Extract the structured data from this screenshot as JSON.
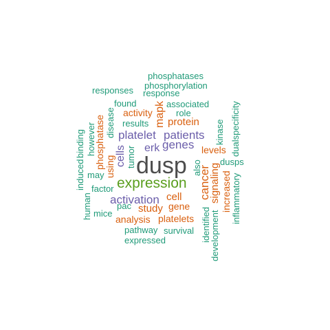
{
  "colors": {
    "dark": "#4d4d4d",
    "green": "#5a9e1e",
    "purple": "#6b5eaa",
    "orange": "#d95f0e",
    "teal": "#1f9a78"
  },
  "words": [
    {
      "text": "dusp",
      "color": "dark",
      "rotated": false
    },
    {
      "text": "expression",
      "color": "green",
      "rotated": false
    },
    {
      "text": "patients",
      "color": "purple",
      "rotated": false
    },
    {
      "text": "genes",
      "color": "purple",
      "rotated": false
    },
    {
      "text": "platelet",
      "color": "purple",
      "rotated": false
    },
    {
      "text": "activation",
      "color": "purple",
      "rotated": false
    },
    {
      "text": "erk",
      "color": "purple",
      "rotated": false
    },
    {
      "text": "cells",
      "color": "purple",
      "rotated": true
    },
    {
      "text": "cancer",
      "color": "orange",
      "rotated": true
    },
    {
      "text": "protein",
      "color": "orange",
      "rotated": false
    },
    {
      "text": "mapk",
      "color": "orange",
      "rotated": true
    },
    {
      "text": "cell",
      "color": "orange",
      "rotated": false
    },
    {
      "text": "study",
      "color": "orange",
      "rotated": false
    },
    {
      "text": "gene",
      "color": "orange",
      "rotated": false
    },
    {
      "text": "analysis",
      "color": "orange",
      "rotated": false
    },
    {
      "text": "platelets",
      "color": "orange",
      "rotated": false
    },
    {
      "text": "activity",
      "color": "orange",
      "rotated": false
    },
    {
      "text": "levels",
      "color": "orange",
      "rotated": false
    },
    {
      "text": "signaling",
      "color": "orange",
      "rotated": true
    },
    {
      "text": "phosphatase",
      "color": "orange",
      "rotated": true
    },
    {
      "text": "using",
      "color": "orange",
      "rotated": true
    },
    {
      "text": "increased",
      "color": "orange",
      "rotated": true
    },
    {
      "text": "phosphatases",
      "color": "teal",
      "rotated": false
    },
    {
      "text": "phosphorylation",
      "color": "teal",
      "rotated": false
    },
    {
      "text": "responses",
      "color": "teal",
      "rotated": false
    },
    {
      "text": "response",
      "color": "teal",
      "rotated": false
    },
    {
      "text": "found",
      "color": "teal",
      "rotated": false
    },
    {
      "text": "associated",
      "color": "teal",
      "rotated": false
    },
    {
      "text": "role",
      "color": "teal",
      "rotated": false
    },
    {
      "text": "results",
      "color": "teal",
      "rotated": false
    },
    {
      "text": "dualspecificity",
      "color": "teal",
      "rotated": true
    },
    {
      "text": "kinase",
      "color": "teal",
      "rotated": true
    },
    {
      "text": "disease",
      "color": "teal",
      "rotated": true
    },
    {
      "text": "however",
      "color": "teal",
      "rotated": true
    },
    {
      "text": "binding",
      "color": "teal",
      "rotated": true
    },
    {
      "text": "induced",
      "color": "teal",
      "rotated": true
    },
    {
      "text": "tumor",
      "color": "teal",
      "rotated": true
    },
    {
      "text": "also",
      "color": "teal",
      "rotated": true
    },
    {
      "text": "dusps",
      "color": "teal",
      "rotated": false
    },
    {
      "text": "may",
      "color": "teal",
      "rotated": false
    },
    {
      "text": "factor",
      "color": "teal",
      "rotated": false
    },
    {
      "text": "human",
      "color": "teal",
      "rotated": true
    },
    {
      "text": "pac",
      "color": "teal",
      "rotated": false
    },
    {
      "text": "mice",
      "color": "teal",
      "rotated": false
    },
    {
      "text": "inflammatory",
      "color": "teal",
      "rotated": true
    },
    {
      "text": "pathway",
      "color": "teal",
      "rotated": false
    },
    {
      "text": "survival",
      "color": "teal",
      "rotated": false
    },
    {
      "text": "expressed",
      "color": "teal",
      "rotated": false
    },
    {
      "text": "identified",
      "color": "teal",
      "rotated": true
    },
    {
      "text": "development",
      "color": "teal",
      "rotated": true
    }
  ]
}
